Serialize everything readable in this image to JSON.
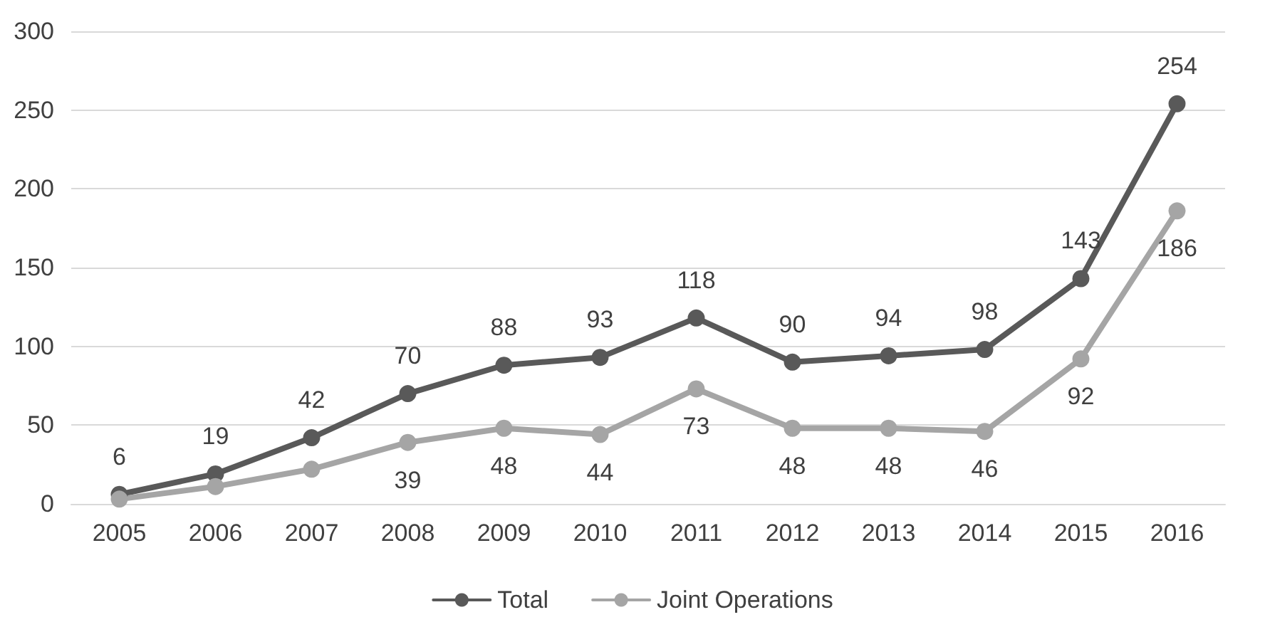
{
  "chart_data": {
    "type": "line",
    "categories": [
      "2005",
      "2006",
      "2007",
      "2008",
      "2009",
      "2010",
      "2011",
      "2012",
      "2013",
      "2014",
      "2015",
      "2016"
    ],
    "series": [
      {
        "name": "Total",
        "color": "#595959",
        "values": [
          6,
          19,
          42,
          70,
          88,
          93,
          118,
          90,
          94,
          98,
          143,
          254
        ],
        "value_labels": [
          "6",
          "19",
          "42",
          "70",
          "88",
          "93",
          "118",
          "90",
          "94",
          "98",
          "143",
          "254"
        ]
      },
      {
        "name": "Joint Operations",
        "color": "#a5a5a5",
        "values": [
          3,
          11,
          22,
          39,
          48,
          44,
          73,
          48,
          48,
          46,
          92,
          186
        ],
        "value_labels": [
          null,
          null,
          null,
          "39",
          "48",
          "44",
          "73",
          "48",
          "48",
          "46",
          "92",
          "186"
        ]
      }
    ],
    "ylim": [
      0,
      300
    ],
    "yticks": [
      0,
      50,
      100,
      150,
      200,
      250,
      300
    ],
    "grid": "y",
    "legend": "bottom",
    "marker": "circle",
    "line_style": "solid"
  }
}
